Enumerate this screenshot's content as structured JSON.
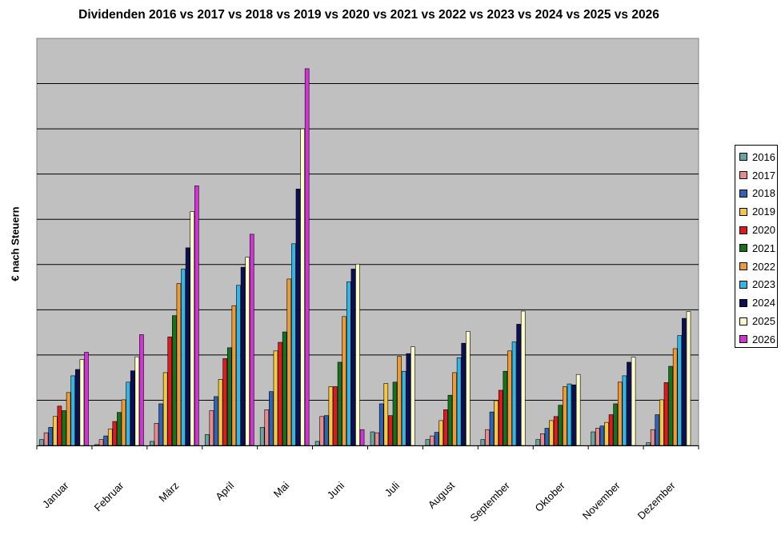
{
  "chart_data": {
    "type": "bar",
    "title": "Dividenden 2016 vs 2017 vs 2018 vs 2019 vs 2020 vs 2021 vs 2022 vs 2023 vs 2024 vs 2025 vs 2026",
    "xlabel": "",
    "ylabel": "€ nach Steuern",
    "categories": [
      "Januar",
      "Februar",
      "März",
      "April",
      "Mai",
      "Juni",
      "Juli",
      "August",
      "September",
      "Oktober",
      "November",
      "Dezember"
    ],
    "ylim": [
      0,
      900
    ],
    "y_tick_labels_shown": false,
    "grid": true,
    "legend_position": "right",
    "series": [
      {
        "name": "2016",
        "color": "#6aa4a2",
        "values": [
          13,
          2,
          9,
          24,
          40,
          9,
          30,
          13,
          13,
          13,
          30,
          6
        ]
      },
      {
        "name": "2017",
        "color": "#e98b8b",
        "values": [
          28,
          13,
          49,
          77,
          79,
          64,
          28,
          21,
          35,
          26,
          38,
          35
        ]
      },
      {
        "name": "2018",
        "color": "#2e63b8",
        "values": [
          40,
          21,
          92,
          108,
          119,
          66,
          92,
          29,
          74,
          38,
          43,
          68
        ]
      },
      {
        "name": "2019",
        "color": "#f6c842",
        "values": [
          64,
          36,
          161,
          146,
          209,
          130,
          137,
          55,
          99,
          55,
          51,
          101
        ]
      },
      {
        "name": "2020",
        "color": "#e0191d",
        "values": [
          87,
          53,
          240,
          192,
          228,
          130,
          66,
          79,
          122,
          64,
          68,
          139
        ]
      },
      {
        "name": "2021",
        "color": "#14731c",
        "values": [
          77,
          73,
          287,
          216,
          251,
          184,
          140,
          111,
          164,
          89,
          92,
          175
        ]
      },
      {
        "name": "2022",
        "color": "#f19a31",
        "values": [
          117,
          101,
          358,
          309,
          368,
          285,
          197,
          161,
          209,
          130,
          140,
          214
        ]
      },
      {
        "name": "2023",
        "color": "#33b5e5",
        "values": [
          154,
          140,
          390,
          354,
          446,
          362,
          164,
          194,
          229,
          136,
          154,
          243
        ]
      },
      {
        "name": "2024",
        "color": "#0b0f58",
        "values": [
          168,
          165,
          437,
          394,
          567,
          390,
          203,
          226,
          268,
          134,
          184,
          281
        ]
      },
      {
        "name": "2025",
        "color": "#ffffcc",
        "values": [
          190,
          196,
          517,
          416,
          700,
          401,
          218,
          252,
          297,
          157,
          195,
          296
        ]
      },
      {
        "name": "2026",
        "color": "#d333d6",
        "values": [
          206,
          245,
          574,
          467,
          833,
          35,
          null,
          null,
          null,
          null,
          null,
          null
        ]
      }
    ]
  }
}
